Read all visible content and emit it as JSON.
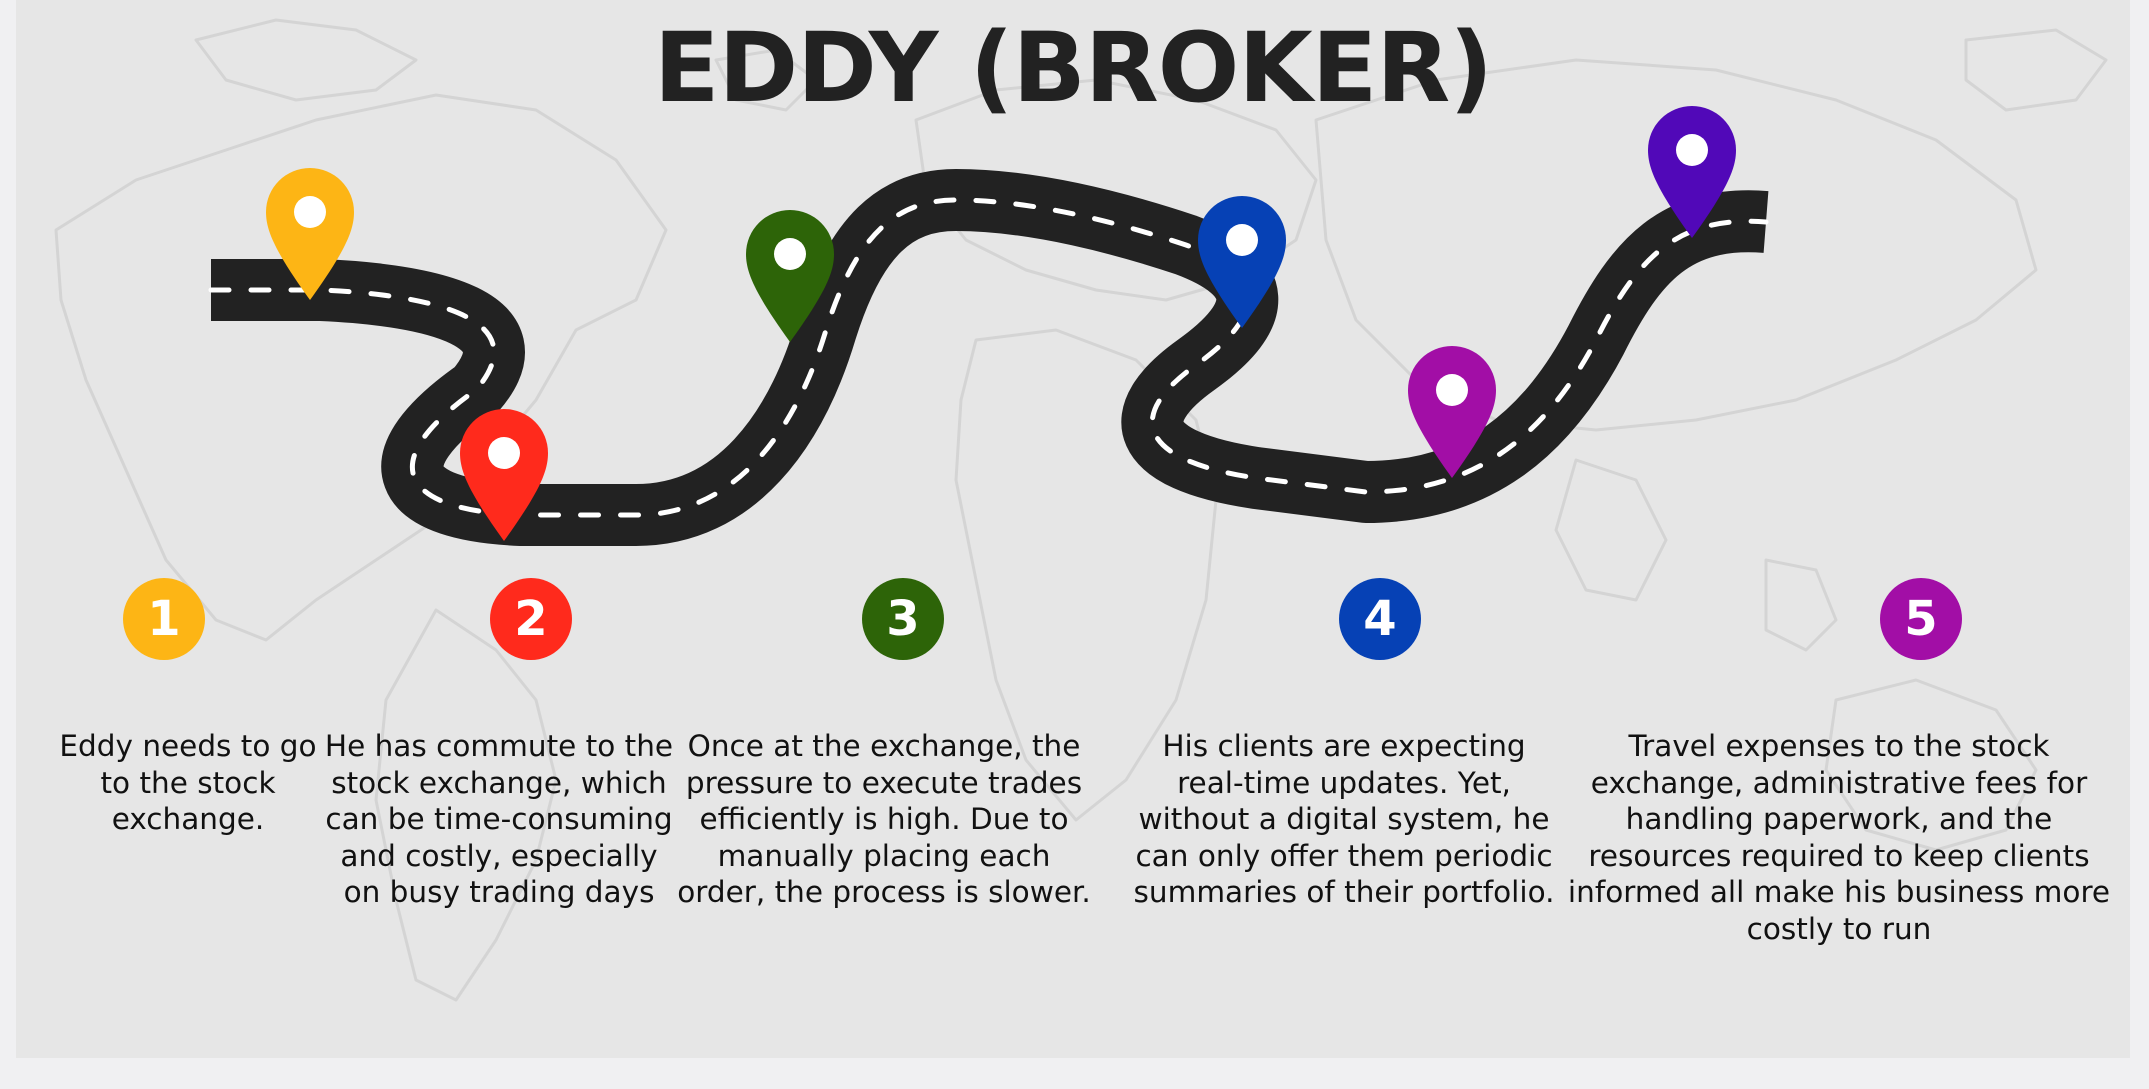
{
  "title": "EDDY (BROKER)",
  "colors": {
    "background": "#e6e6e6",
    "road": "#222222",
    "road_dash": "#ffffff",
    "step_1": "#fdb515",
    "step_2": "#ff2a1c",
    "step_3": "#2d6408",
    "step_4": "#0641b5",
    "step_5": "#a20ea6",
    "end_pin": "#5108b8"
  },
  "steps": [
    {
      "number": "1",
      "pin_color": "#fdb515",
      "icon": "map-pin-icon",
      "lines": [
        "Eddy needs to go",
        "to the stock",
        "exchange."
      ]
    },
    {
      "number": "2",
      "pin_color": "#ff2a1c",
      "icon": "map-pin-icon",
      "lines": [
        "He has commute to the",
        "stock exchange, which",
        "can be time-consuming",
        "and costly, especially",
        "on busy trading days"
      ]
    },
    {
      "number": "3",
      "pin_color": "#2d6408",
      "icon": "map-pin-icon",
      "lines": [
        "Once at the exchange, the",
        "pressure to execute trades",
        "efficiently is high. Due to",
        "manually placing each",
        "order, the process is slower."
      ]
    },
    {
      "number": "4",
      "pin_color": "#0641b5",
      "icon": "map-pin-icon",
      "lines": [
        "His clients are expecting",
        "real-time updates. Yet,",
        "without a digital system, he",
        "can only offer them periodic",
        "summaries of their portfolio."
      ]
    },
    {
      "number": "5",
      "pin_color": "#a20ea6",
      "icon": "map-pin-icon",
      "lines": [
        "Travel expenses to the stock",
        "exchange, administrative fees for",
        "handling paperwork, and the",
        "resources required to keep clients",
        "informed all make his business more",
        "costly to run"
      ]
    }
  ]
}
